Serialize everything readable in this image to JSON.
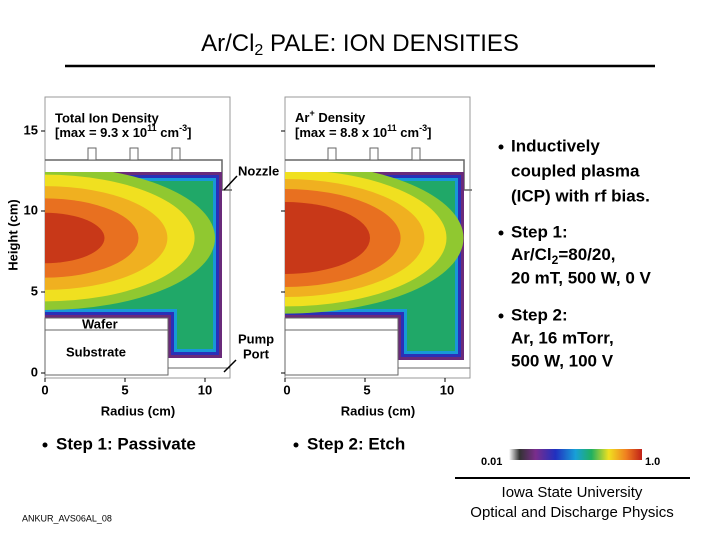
{
  "title": {
    "text": "Ar/Cl",
    "sub": "2",
    "rest": " PALE: ION DENSITIES"
  },
  "panels": [
    {
      "heading": "Total Ion Density",
      "max": {
        "text": "[max = 9.3 x 10",
        "exp": "11",
        "unit": " cm",
        "unit_exp": "-3",
        "close": "]"
      },
      "labels": {
        "nozzle": "Nozzle",
        "wafer": "Wafer",
        "substrate": "Substrate",
        "pump": "Pump",
        "port": "Port"
      },
      "y_axis_label": "Height (cm)",
      "y_ticks": [
        "15",
        "10",
        "5",
        "0"
      ],
      "x_ticks": [
        "0",
        "5",
        "10"
      ],
      "x_axis_label": "Radius (cm)",
      "caption": "Step 1: Passivate"
    },
    {
      "heading": {
        "text": "Ar",
        "sup": "+",
        "rest": " Density"
      },
      "max": {
        "text": "[max = 8.8 x 10",
        "exp": "11",
        "unit": " cm",
        "unit_exp": "-3",
        "close": "]"
      },
      "x_ticks": [
        "0",
        "5",
        "10"
      ],
      "x_axis_label": "Radius (cm)",
      "caption": "Step 2: Etch"
    }
  ],
  "bullets": [
    {
      "lines": [
        "Inductively",
        "coupled plasma",
        "(ICP) with rf bias."
      ]
    },
    {
      "line1": "Step 1:",
      "line2": {
        "text": "Ar/Cl",
        "sub": "2",
        "rest": "=80/20,"
      },
      "line3": "20 mT, 500 W, 0 V"
    },
    {
      "lines": [
        "Step 2:",
        "Ar, 16 mTorr,",
        "500 W, 100 V"
      ]
    }
  ],
  "colorbar": {
    "min_label": "0.01",
    "max_label": "1.0"
  },
  "footer": {
    "institution": "Iowa State University",
    "group": "Optical and Discharge Physics",
    "slide_id": "ANKUR_AVS06AL_08"
  }
}
